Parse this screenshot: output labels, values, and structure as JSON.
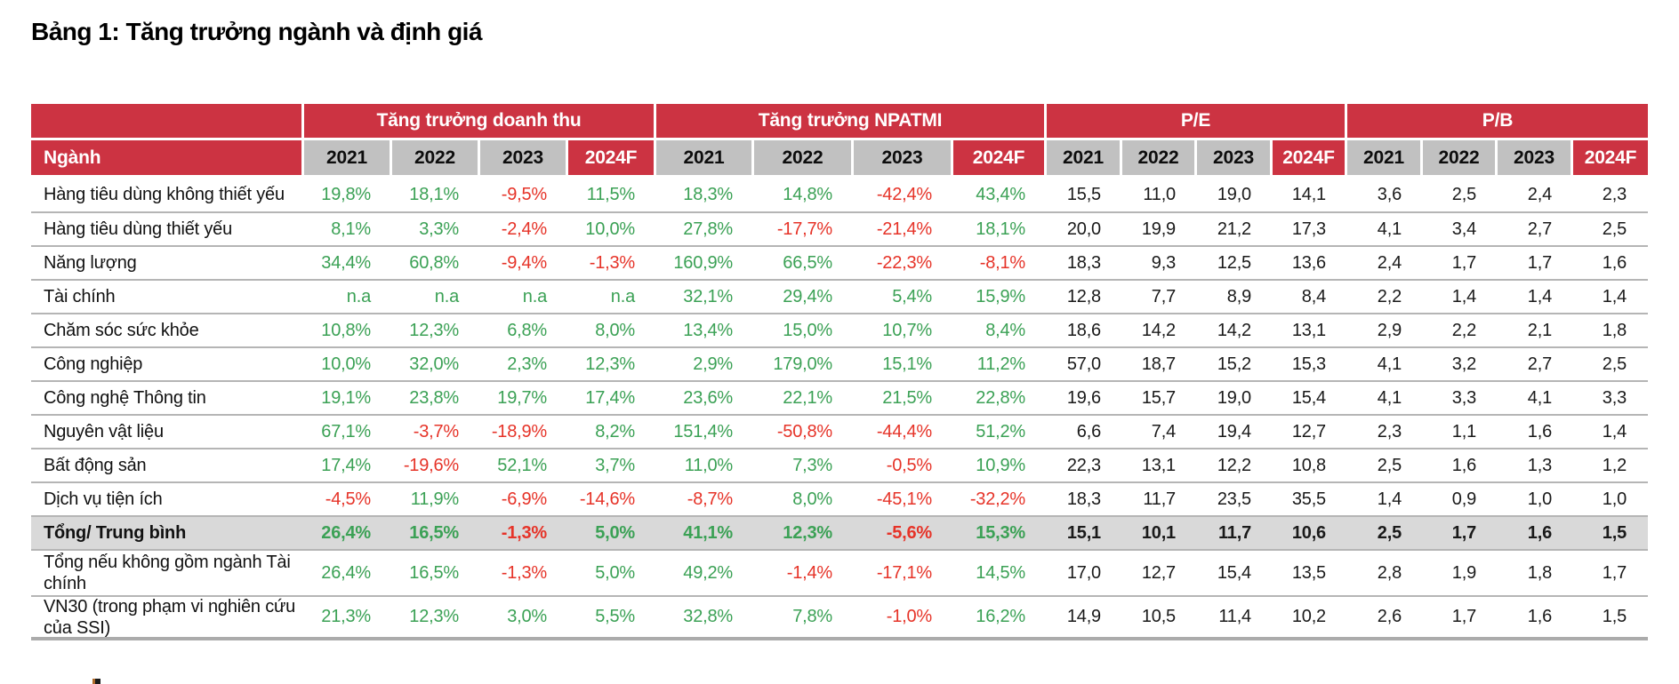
{
  "page": {
    "title": "Bảng 1: Tăng trưởng ngành và định giá"
  },
  "table": {
    "corner_label": "Ngành",
    "groups": [
      {
        "label": "Tăng trưởng doanh thu",
        "years": [
          "2021",
          "2022",
          "2023",
          "2024F"
        ],
        "value_type": "percent"
      },
      {
        "label": "Tăng trưởng NPATMI",
        "years": [
          "2021",
          "2022",
          "2023",
          "2024F"
        ],
        "value_type": "percent"
      },
      {
        "label": "P/E",
        "years": [
          "2021",
          "2022",
          "2023",
          "2024F"
        ],
        "value_type": "ratio"
      },
      {
        "label": "P/B",
        "years": [
          "2021",
          "2022",
          "2023",
          "2024F"
        ],
        "value_type": "ratio"
      }
    ],
    "rows": [
      {
        "label": "Hàng tiêu dùng không thiết yếu",
        "is_total": false,
        "values": [
          "19,8%",
          "18,1%",
          "-9,5%",
          "11,5%",
          "18,3%",
          "14,8%",
          "-42,4%",
          "43,4%",
          "15,5",
          "11,0",
          "19,0",
          "14,1",
          "3,6",
          "2,5",
          "2,4",
          "2,3"
        ]
      },
      {
        "label": "Hàng tiêu dùng thiết yếu",
        "is_total": false,
        "values": [
          "8,1%",
          "3,3%",
          "-2,4%",
          "10,0%",
          "27,8%",
          "-17,7%",
          "-21,4%",
          "18,1%",
          "20,0",
          "19,9",
          "21,2",
          "17,3",
          "4,1",
          "3,4",
          "2,7",
          "2,5"
        ]
      },
      {
        "label": "Năng lượng",
        "is_total": false,
        "values": [
          "34,4%",
          "60,8%",
          "-9,4%",
          "-1,3%",
          "160,9%",
          "66,5%",
          "-22,3%",
          "-8,1%",
          "18,3",
          "9,3",
          "12,5",
          "13,6",
          "2,4",
          "1,7",
          "1,7",
          "1,6"
        ]
      },
      {
        "label": "Tài chính",
        "is_total": false,
        "values": [
          "n.a",
          "n.a",
          "n.a",
          "n.a",
          "32,1%",
          "29,4%",
          "5,4%",
          "15,9%",
          "12,8",
          "7,7",
          "8,9",
          "8,4",
          "2,2",
          "1,4",
          "1,4",
          "1,4"
        ]
      },
      {
        "label": "Chăm sóc sức khỏe",
        "is_total": false,
        "values": [
          "10,8%",
          "12,3%",
          "6,8%",
          "8,0%",
          "13,4%",
          "15,0%",
          "10,7%",
          "8,4%",
          "18,6",
          "14,2",
          "14,2",
          "13,1",
          "2,9",
          "2,2",
          "2,1",
          "1,8"
        ]
      },
      {
        "label": "Công nghiệp",
        "is_total": false,
        "values": [
          "10,0%",
          "32,0%",
          "2,3%",
          "12,3%",
          "2,9%",
          "179,0%",
          "15,1%",
          "11,2%",
          "57,0",
          "18,7",
          "15,2",
          "15,3",
          "4,1",
          "3,2",
          "2,7",
          "2,5"
        ]
      },
      {
        "label": "Công nghệ Thông tin",
        "is_total": false,
        "values": [
          "19,1%",
          "23,8%",
          "19,7%",
          "17,4%",
          "23,6%",
          "22,1%",
          "21,5%",
          "22,8%",
          "19,6",
          "15,7",
          "19,0",
          "15,4",
          "4,1",
          "3,3",
          "4,1",
          "3,3"
        ]
      },
      {
        "label": "Nguyên vật liệu",
        "is_total": false,
        "values": [
          "67,1%",
          "-3,7%",
          "-18,9%",
          "8,2%",
          "151,4%",
          "-50,8%",
          "-44,4%",
          "51,2%",
          "6,6",
          "7,4",
          "19,4",
          "12,7",
          "2,3",
          "1,1",
          "1,6",
          "1,4"
        ]
      },
      {
        "label": "Bất động sản",
        "is_total": false,
        "values": [
          "17,4%",
          "-19,6%",
          "52,1%",
          "3,7%",
          "11,0%",
          "7,3%",
          "-0,5%",
          "10,9%",
          "22,3",
          "13,1",
          "12,2",
          "10,8",
          "2,5",
          "1,6",
          "1,3",
          "1,2"
        ]
      },
      {
        "label": "Dịch vụ tiện ích",
        "is_total": false,
        "values": [
          "-4,5%",
          "11,9%",
          "-6,9%",
          "-14,6%",
          "-8,7%",
          "8,0%",
          "-45,1%",
          "-32,2%",
          "18,3",
          "11,7",
          "23,5",
          "35,5",
          "1,4",
          "0,9",
          "1,0",
          "1,0"
        ]
      },
      {
        "label": "Tổng/ Trung bình",
        "is_total": true,
        "values": [
          "26,4%",
          "16,5%",
          "-1,3%",
          "5,0%",
          "41,1%",
          "12,3%",
          "-5,6%",
          "15,3%",
          "15,1",
          "10,1",
          "11,7",
          "10,6",
          "2,5",
          "1,7",
          "1,6",
          "1,5"
        ]
      },
      {
        "label": "Tổng nếu không gồm ngành Tài chính",
        "is_total": false,
        "values": [
          "26,4%",
          "16,5%",
          "-1,3%",
          "5,0%",
          "49,2%",
          "-1,4%",
          "-17,1%",
          "14,5%",
          "17,0",
          "12,7",
          "15,4",
          "13,5",
          "2,8",
          "1,9",
          "1,8",
          "1,7"
        ]
      },
      {
        "label": "VN30 (trong phạm vi nghiên cứu của SSI)",
        "is_total": false,
        "values": [
          "21,3%",
          "12,3%",
          "3,0%",
          "5,5%",
          "32,8%",
          "7,8%",
          "-1,0%",
          "16,2%",
          "14,9",
          "10,5",
          "11,4",
          "10,2",
          "2,6",
          "1,7",
          "1,6",
          "1,5"
        ]
      }
    ],
    "colors": {
      "header_red": "#cc3342",
      "header_gray": "#c1c1c1",
      "total_row_bg": "#d9d9d9",
      "positive_green": "#3ba155",
      "negative_red": "#e63328",
      "neutral_black": "#1a1a1a",
      "separator_gray": "#b5b5b5"
    }
  }
}
